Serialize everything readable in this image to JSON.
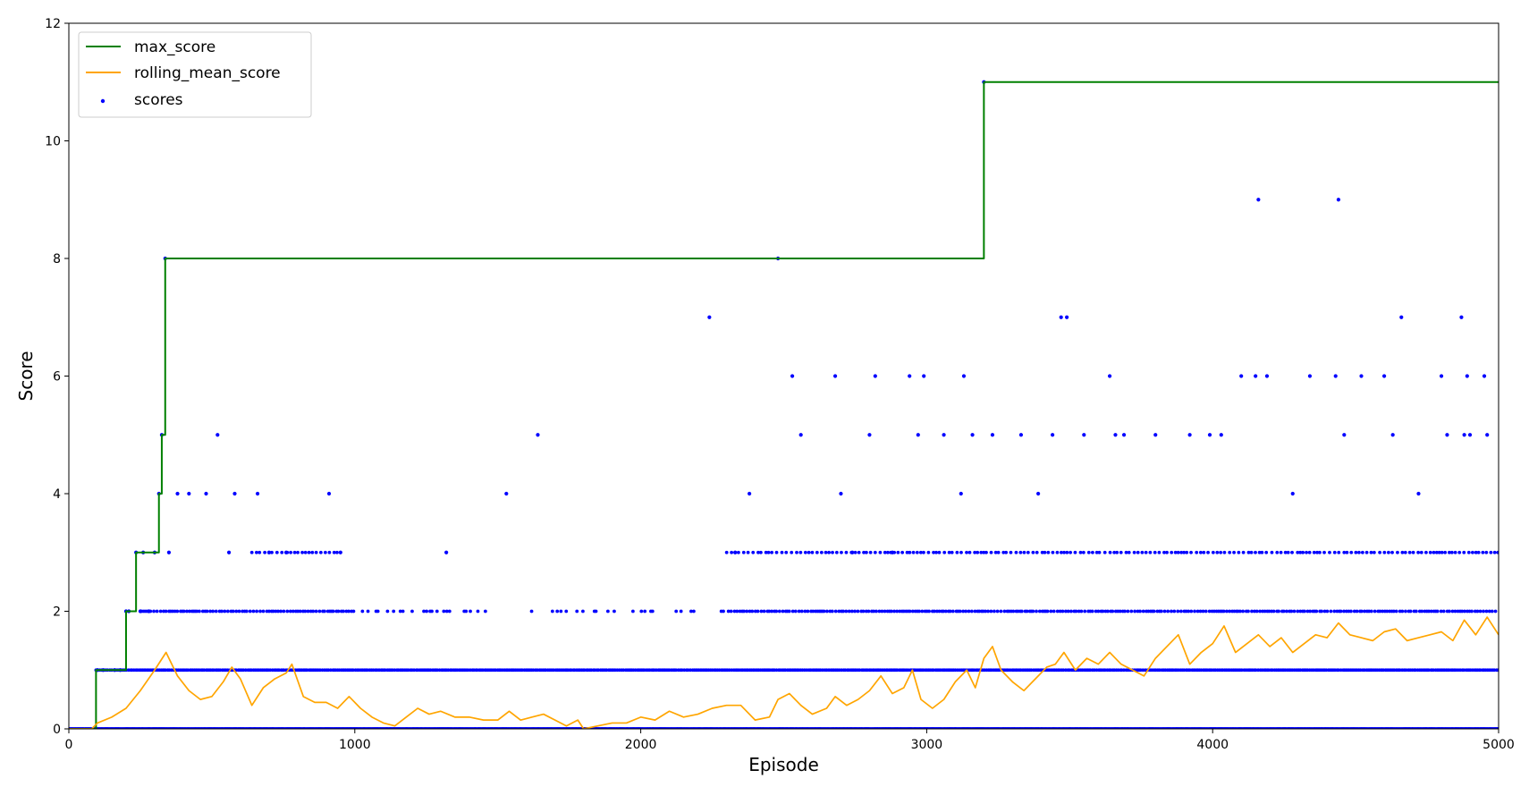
{
  "chart_data": {
    "type": "line",
    "title": "",
    "xlabel": "Episode",
    "ylabel": "Score",
    "xlim": [
      0,
      5000
    ],
    "ylim": [
      0,
      12
    ],
    "x_ticks": [
      0,
      1000,
      2000,
      3000,
      4000,
      5000
    ],
    "y_ticks": [
      0,
      2,
      4,
      6,
      8,
      10,
      12
    ],
    "grid": false,
    "legend_position": "top-left",
    "series": [
      {
        "name": "max_score",
        "kind": "step-line",
        "color": "#008000",
        "points": [
          [
            0,
            0
          ],
          [
            95,
            0
          ],
          [
            95,
            1
          ],
          [
            200,
            1
          ],
          [
            200,
            2
          ],
          [
            235,
            2
          ],
          [
            235,
            3
          ],
          [
            315,
            3
          ],
          [
            315,
            4
          ],
          [
            325,
            4
          ],
          [
            325,
            5
          ],
          [
            337,
            5
          ],
          [
            337,
            8
          ],
          [
            3200,
            8
          ],
          [
            3200,
            11
          ],
          [
            5000,
            11
          ]
        ]
      },
      {
        "name": "rolling_mean_score",
        "kind": "line",
        "color": "#FFA500",
        "points": [
          [
            0,
            0
          ],
          [
            80,
            0
          ],
          [
            100,
            0.1
          ],
          [
            150,
            0.2
          ],
          [
            200,
            0.35
          ],
          [
            250,
            0.65
          ],
          [
            300,
            1.0
          ],
          [
            340,
            1.3
          ],
          [
            380,
            0.9
          ],
          [
            420,
            0.65
          ],
          [
            460,
            0.5
          ],
          [
            500,
            0.55
          ],
          [
            540,
            0.8
          ],
          [
            570,
            1.05
          ],
          [
            600,
            0.85
          ],
          [
            640,
            0.4
          ],
          [
            680,
            0.7
          ],
          [
            720,
            0.85
          ],
          [
            760,
            0.95
          ],
          [
            780,
            1.1
          ],
          [
            820,
            0.55
          ],
          [
            860,
            0.45
          ],
          [
            900,
            0.45
          ],
          [
            940,
            0.35
          ],
          [
            980,
            0.55
          ],
          [
            1020,
            0.35
          ],
          [
            1060,
            0.2
          ],
          [
            1100,
            0.1
          ],
          [
            1140,
            0.05
          ],
          [
            1180,
            0.2
          ],
          [
            1220,
            0.35
          ],
          [
            1260,
            0.25
          ],
          [
            1300,
            0.3
          ],
          [
            1350,
            0.2
          ],
          [
            1400,
            0.2
          ],
          [
            1450,
            0.15
          ],
          [
            1500,
            0.15
          ],
          [
            1540,
            0.3
          ],
          [
            1580,
            0.15
          ],
          [
            1620,
            0.2
          ],
          [
            1660,
            0.25
          ],
          [
            1700,
            0.15
          ],
          [
            1740,
            0.05
          ],
          [
            1780,
            0.15
          ],
          [
            1800,
            0.0
          ],
          [
            1850,
            0.05
          ],
          [
            1900,
            0.1
          ],
          [
            1950,
            0.1
          ],
          [
            2000,
            0.2
          ],
          [
            2050,
            0.15
          ],
          [
            2100,
            0.3
          ],
          [
            2150,
            0.2
          ],
          [
            2200,
            0.25
          ],
          [
            2250,
            0.35
          ],
          [
            2300,
            0.4
          ],
          [
            2350,
            0.4
          ],
          [
            2400,
            0.15
          ],
          [
            2450,
            0.2
          ],
          [
            2480,
            0.5
          ],
          [
            2520,
            0.6
          ],
          [
            2560,
            0.4
          ],
          [
            2600,
            0.25
          ],
          [
            2650,
            0.35
          ],
          [
            2680,
            0.55
          ],
          [
            2720,
            0.4
          ],
          [
            2760,
            0.5
          ],
          [
            2800,
            0.65
          ],
          [
            2840,
            0.9
          ],
          [
            2880,
            0.6
          ],
          [
            2920,
            0.7
          ],
          [
            2950,
            1.0
          ],
          [
            2980,
            0.5
          ],
          [
            3020,
            0.35
          ],
          [
            3060,
            0.5
          ],
          [
            3100,
            0.8
          ],
          [
            3140,
            1.0
          ],
          [
            3170,
            0.7
          ],
          [
            3200,
            1.2
          ],
          [
            3230,
            1.4
          ],
          [
            3260,
            1.0
          ],
          [
            3300,
            0.8
          ],
          [
            3340,
            0.65
          ],
          [
            3380,
            0.85
          ],
          [
            3420,
            1.05
          ],
          [
            3450,
            1.1
          ],
          [
            3480,
            1.3
          ],
          [
            3520,
            1.0
          ],
          [
            3560,
            1.2
          ],
          [
            3600,
            1.1
          ],
          [
            3640,
            1.3
          ],
          [
            3680,
            1.1
          ],
          [
            3720,
            1.0
          ],
          [
            3760,
            0.9
          ],
          [
            3800,
            1.2
          ],
          [
            3840,
            1.4
          ],
          [
            3880,
            1.6
          ],
          [
            3920,
            1.1
          ],
          [
            3960,
            1.3
          ],
          [
            4000,
            1.45
          ],
          [
            4040,
            1.75
          ],
          [
            4080,
            1.3
          ],
          [
            4120,
            1.45
          ],
          [
            4160,
            1.6
          ],
          [
            4200,
            1.4
          ],
          [
            4240,
            1.55
          ],
          [
            4280,
            1.3
          ],
          [
            4320,
            1.45
          ],
          [
            4360,
            1.6
          ],
          [
            4400,
            1.55
          ],
          [
            4440,
            1.8
          ],
          [
            4480,
            1.6
          ],
          [
            4520,
            1.55
          ],
          [
            4560,
            1.5
          ],
          [
            4600,
            1.65
          ],
          [
            4640,
            1.7
          ],
          [
            4680,
            1.5
          ],
          [
            4720,
            1.55
          ],
          [
            4760,
            1.6
          ],
          [
            4800,
            1.65
          ],
          [
            4840,
            1.5
          ],
          [
            4880,
            1.85
          ],
          [
            4920,
            1.6
          ],
          [
            4960,
            1.9
          ],
          [
            5000,
            1.6
          ]
        ]
      },
      {
        "name": "scores",
        "kind": "scatter",
        "color": "#0000FF",
        "notes_values": "dense levels at 0,1,2,3 plus sparse points at 4-9,11",
        "points": [
          [
            100,
            1
          ],
          [
            120,
            1
          ],
          [
            160,
            1
          ],
          [
            180,
            1
          ],
          [
            200,
            2
          ],
          [
            210,
            2
          ],
          [
            235,
            3
          ],
          [
            250,
            2
          ],
          [
            260,
            3
          ],
          [
            280,
            2
          ],
          [
            300,
            3
          ],
          [
            315,
            4
          ],
          [
            325,
            5
          ],
          [
            337,
            8
          ],
          [
            350,
            3
          ],
          [
            380,
            4
          ],
          [
            420,
            4
          ],
          [
            480,
            4
          ],
          [
            520,
            5
          ],
          [
            560,
            3
          ],
          [
            580,
            4
          ],
          [
            660,
            4
          ],
          [
            700,
            3
          ],
          [
            760,
            3
          ],
          [
            910,
            4
          ],
          [
            950,
            3
          ],
          [
            1320,
            3
          ],
          [
            1530,
            4
          ],
          [
            1640,
            5
          ],
          [
            2240,
            7
          ],
          [
            2330,
            3
          ],
          [
            2380,
            4
          ],
          [
            2480,
            8
          ],
          [
            2530,
            6
          ],
          [
            2560,
            5
          ],
          [
            2680,
            6
          ],
          [
            2700,
            4
          ],
          [
            2740,
            3
          ],
          [
            2800,
            5
          ],
          [
            2820,
            6
          ],
          [
            2880,
            3
          ],
          [
            2940,
            6
          ],
          [
            2970,
            5
          ],
          [
            2990,
            6
          ],
          [
            3060,
            5
          ],
          [
            3120,
            4
          ],
          [
            3130,
            6
          ],
          [
            3160,
            5
          ],
          [
            3200,
            11
          ],
          [
            3230,
            5
          ],
          [
            3330,
            5
          ],
          [
            3390,
            4
          ],
          [
            3440,
            5
          ],
          [
            3470,
            7
          ],
          [
            3490,
            7
          ],
          [
            3550,
            5
          ],
          [
            3640,
            6
          ],
          [
            3660,
            5
          ],
          [
            3690,
            5
          ],
          [
            3800,
            5
          ],
          [
            3920,
            5
          ],
          [
            3990,
            5
          ],
          [
            4030,
            5
          ],
          [
            4100,
            6
          ],
          [
            4150,
            6
          ],
          [
            4160,
            9
          ],
          [
            4190,
            6
          ],
          [
            4280,
            4
          ],
          [
            4340,
            6
          ],
          [
            4430,
            6
          ],
          [
            4440,
            9
          ],
          [
            4460,
            5
          ],
          [
            4520,
            6
          ],
          [
            4600,
            6
          ],
          [
            4630,
            5
          ],
          [
            4660,
            7
          ],
          [
            4720,
            4
          ],
          [
            4800,
            6
          ],
          [
            4820,
            5
          ],
          [
            4870,
            7
          ],
          [
            4880,
            5
          ],
          [
            4890,
            6
          ],
          [
            4900,
            5
          ],
          [
            4950,
            6
          ],
          [
            4960,
            5
          ]
        ]
      }
    ],
    "legend": [
      {
        "name": "max_score",
        "marker": "line",
        "color": "#008000"
      },
      {
        "name": "rolling_mean_score",
        "marker": "line",
        "color": "#FFA500"
      },
      {
        "name": "scores",
        "marker": "dot",
        "color": "#0000FF"
      }
    ]
  }
}
